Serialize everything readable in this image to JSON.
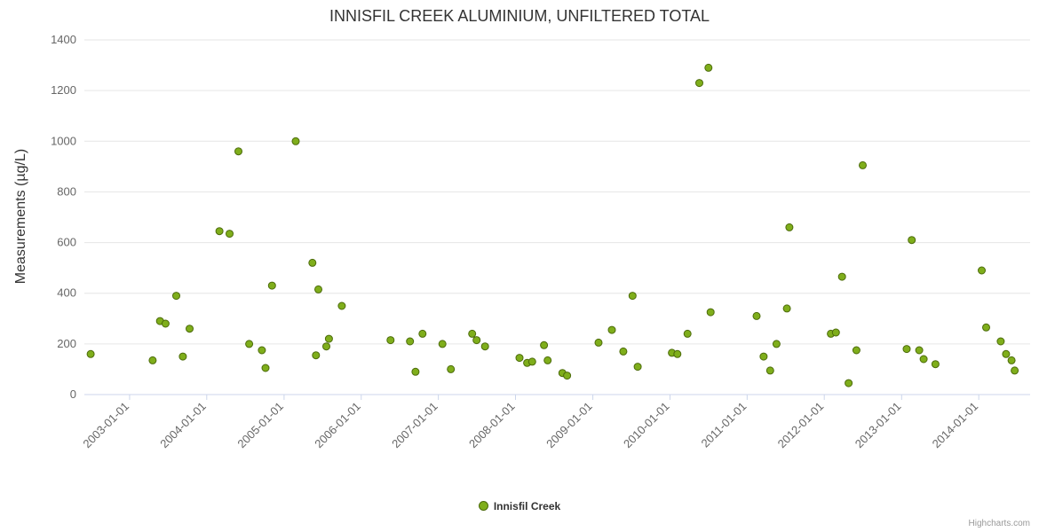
{
  "title": "INNISFIL CREEK ALUMINIUM, UNFILTERED TOTAL",
  "legend": {
    "label": "Innisfil Creek"
  },
  "credits": "Highcharts.com",
  "colors": {
    "point_fill": "#7fae1b",
    "point_stroke": "#4c6b0b",
    "grid": "#e6e6e6",
    "axis_label": "#666666",
    "axis_line": "#ccd6eb",
    "title": "#333333"
  },
  "chart_data": {
    "type": "scatter",
    "title": "INNISFIL CREEK ALUMINIUM, UNFILTERED TOTAL",
    "xlabel": "",
    "ylabel": "Measurements (µg/L)",
    "ylim": [
      0,
      1400
    ],
    "yticks": [
      0,
      200,
      400,
      600,
      800,
      1000,
      1200,
      1400
    ],
    "xticks": [
      "2003-01-01",
      "2004-01-01",
      "2005-01-01",
      "2006-01-01",
      "2007-01-01",
      "2008-01-01",
      "2009-01-01",
      "2010-01-01",
      "2011-01-01",
      "2012-01-01",
      "2013-01-01",
      "2014-01-01"
    ],
    "xmin": "2002-06-01",
    "xmax": "2014-09-01",
    "grid": "horizontal",
    "legend_position": "bottom",
    "series": [
      {
        "name": "Innisfil Creek",
        "points": [
          [
            "2002-07-01",
            160
          ],
          [
            "2003-04-20",
            135
          ],
          [
            "2003-05-25",
            290
          ],
          [
            "2003-06-20",
            280
          ],
          [
            "2003-08-10",
            390
          ],
          [
            "2003-09-10",
            150
          ],
          [
            "2003-10-12",
            260
          ],
          [
            "2004-03-01",
            645
          ],
          [
            "2004-04-18",
            635
          ],
          [
            "2004-05-30",
            960
          ],
          [
            "2004-07-20",
            200
          ],
          [
            "2004-09-18",
            175
          ],
          [
            "2004-10-05",
            105
          ],
          [
            "2004-11-05",
            430
          ],
          [
            "2005-02-25",
            1000
          ],
          [
            "2005-05-15",
            520
          ],
          [
            "2005-06-01",
            155
          ],
          [
            "2005-06-12",
            415
          ],
          [
            "2005-07-20",
            190
          ],
          [
            "2005-08-01",
            220
          ],
          [
            "2005-10-01",
            350
          ],
          [
            "2006-05-20",
            215
          ],
          [
            "2006-08-20",
            210
          ],
          [
            "2006-09-15",
            90
          ],
          [
            "2006-10-18",
            240
          ],
          [
            "2007-01-20",
            200
          ],
          [
            "2007-03-01",
            100
          ],
          [
            "2007-06-10",
            240
          ],
          [
            "2007-07-01",
            215
          ],
          [
            "2007-08-10",
            190
          ],
          [
            "2008-01-20",
            145
          ],
          [
            "2008-02-25",
            125
          ],
          [
            "2008-03-20",
            130
          ],
          [
            "2008-05-15",
            195
          ],
          [
            "2008-06-01",
            135
          ],
          [
            "2008-08-10",
            85
          ],
          [
            "2008-09-01",
            75
          ],
          [
            "2009-01-28",
            205
          ],
          [
            "2009-04-01",
            255
          ],
          [
            "2009-05-25",
            170
          ],
          [
            "2009-07-08",
            390
          ],
          [
            "2009-08-01",
            110
          ],
          [
            "2010-01-10",
            165
          ],
          [
            "2010-02-05",
            160
          ],
          [
            "2010-03-25",
            240
          ],
          [
            "2010-05-20",
            1230
          ],
          [
            "2010-07-02",
            1290
          ],
          [
            "2010-07-12",
            325
          ],
          [
            "2011-02-15",
            310
          ],
          [
            "2011-03-20",
            150
          ],
          [
            "2011-04-20",
            95
          ],
          [
            "2011-05-20",
            200
          ],
          [
            "2011-07-08",
            340
          ],
          [
            "2011-07-20",
            660
          ],
          [
            "2012-02-01",
            240
          ],
          [
            "2012-02-25",
            245
          ],
          [
            "2012-03-25",
            465
          ],
          [
            "2012-04-25",
            45
          ],
          [
            "2012-06-01",
            175
          ],
          [
            "2012-07-01",
            905
          ],
          [
            "2013-01-25",
            180
          ],
          [
            "2013-02-18",
            610
          ],
          [
            "2013-03-25",
            175
          ],
          [
            "2013-04-15",
            140
          ],
          [
            "2013-06-10",
            120
          ],
          [
            "2014-01-15",
            490
          ],
          [
            "2014-02-05",
            265
          ],
          [
            "2014-04-15",
            210
          ],
          [
            "2014-05-10",
            160
          ],
          [
            "2014-06-05",
            135
          ],
          [
            "2014-06-20",
            95
          ]
        ]
      }
    ]
  }
}
